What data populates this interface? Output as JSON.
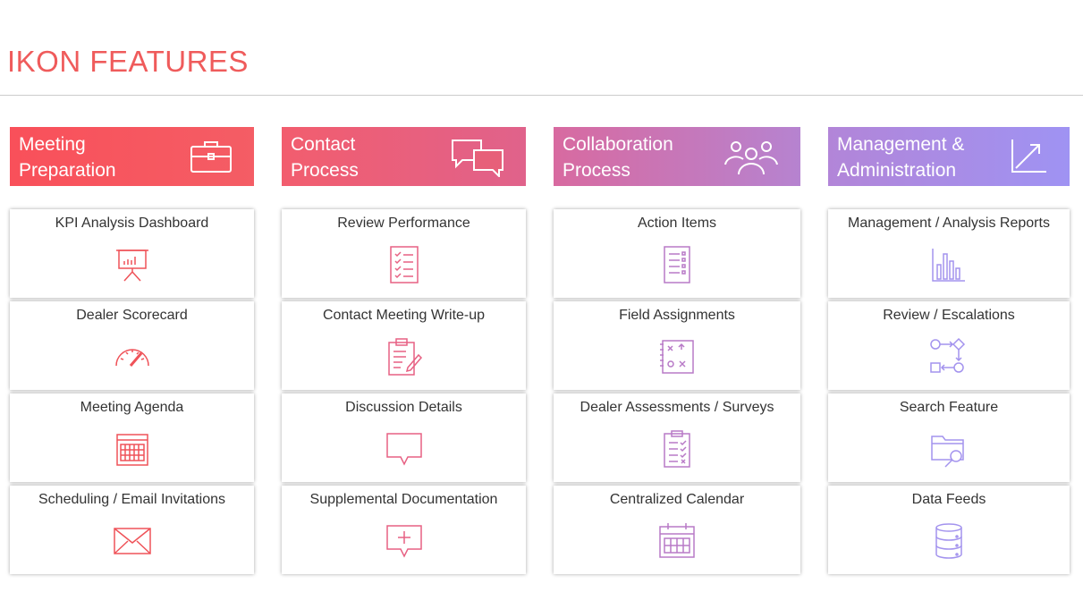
{
  "page": {
    "title": "IKON FEATURES"
  },
  "columns": [
    {
      "header": "Meeting\nPreparation",
      "header_icon": "briefcase-icon",
      "items": [
        {
          "label": "KPI Analysis Dashboard",
          "icon": "presentation-chart-icon"
        },
        {
          "label": "Dealer Scorecard",
          "icon": "speedometer-icon"
        },
        {
          "label": "Meeting Agenda",
          "icon": "calendar-grid-icon"
        },
        {
          "label": "Scheduling / Email Invitations",
          "icon": "envelope-icon"
        }
      ]
    },
    {
      "header": "Contact\nProcess",
      "header_icon": "chat-bubbles-icon",
      "items": [
        {
          "label": "Review Performance",
          "icon": "checklist-icon"
        },
        {
          "label": "Contact Meeting Write-up",
          "icon": "clipboard-pen-icon"
        },
        {
          "label": "Discussion Details",
          "icon": "speech-bubble-icon"
        },
        {
          "label": "Supplemental Documentation",
          "icon": "add-comment-icon"
        }
      ]
    },
    {
      "header": "Collaboration\nProcess",
      "header_icon": "people-group-icon",
      "items": [
        {
          "label": "Action Items",
          "icon": "document-list-icon"
        },
        {
          "label": "Field Assignments",
          "icon": "play-strategy-icon"
        },
        {
          "label": "Dealer Assessments / Surveys",
          "icon": "clipboard-checklist-icon"
        },
        {
          "label": "Centralized Calendar",
          "icon": "calendar-icon"
        }
      ]
    },
    {
      "header": "Management &\nAdministration",
      "header_icon": "trend-arrow-icon",
      "items": [
        {
          "label": "Management / Analysis Reports",
          "icon": "bar-chart-icon"
        },
        {
          "label": "Review / Escalations",
          "icon": "workflow-icon"
        },
        {
          "label": "Search Feature",
          "icon": "folder-search-icon"
        },
        {
          "label": "Data Feeds",
          "icon": "database-icon"
        }
      ]
    }
  ]
}
